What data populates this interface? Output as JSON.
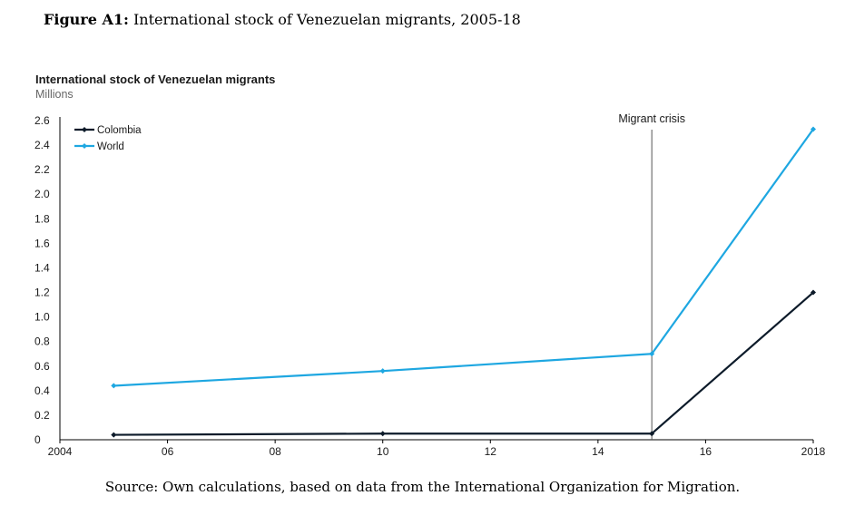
{
  "figure": {
    "label": "Figure A1:",
    "caption": "International stock of Venezuelan migrants, 2005-18"
  },
  "source": "Source: Own calculations, based on data from the International Organization for Migration.",
  "colors": {
    "colombia": "#0d1b2a",
    "world": "#1ea7e1",
    "annotation_line": "#555555",
    "axis": "#000000"
  },
  "chart_data": {
    "type": "line",
    "title": "International stock of Venezuelan migrants",
    "subtitle": "Millions",
    "xlim": [
      2004,
      2018
    ],
    "ylim": [
      0,
      2.6
    ],
    "x_ticks": [
      2004,
      2006,
      2008,
      2010,
      2012,
      2014,
      2016,
      2018
    ],
    "x_tick_labels": [
      "2004",
      "06",
      "08",
      "10",
      "12",
      "14",
      "16",
      "2018"
    ],
    "y_ticks": [
      0,
      0.2,
      0.4,
      0.6,
      0.8,
      1.0,
      1.2,
      1.4,
      1.6,
      1.8,
      2.0,
      2.2,
      2.4,
      2.6
    ],
    "y_tick_labels": [
      "0",
      "0.2",
      "0.4",
      "0.6",
      "0.8",
      "1.0",
      "1.2",
      "1.4",
      "1.6",
      "1.8",
      "2.0",
      "2.2",
      "2.4",
      "2.6"
    ],
    "grid": false,
    "legend_position": "top-left",
    "series": [
      {
        "name": "Colombia",
        "color": "#0d1b2a",
        "x": [
          2005,
          2010,
          2015,
          2018
        ],
        "y": [
          0.04,
          0.05,
          0.05,
          1.2
        ]
      },
      {
        "name": "World",
        "color": "#1ea7e1",
        "x": [
          2005,
          2010,
          2015,
          2018
        ],
        "y": [
          0.44,
          0.56,
          0.7,
          2.53
        ]
      }
    ],
    "annotations": [
      {
        "label": "Migrant crisis",
        "x": 2015
      }
    ]
  }
}
